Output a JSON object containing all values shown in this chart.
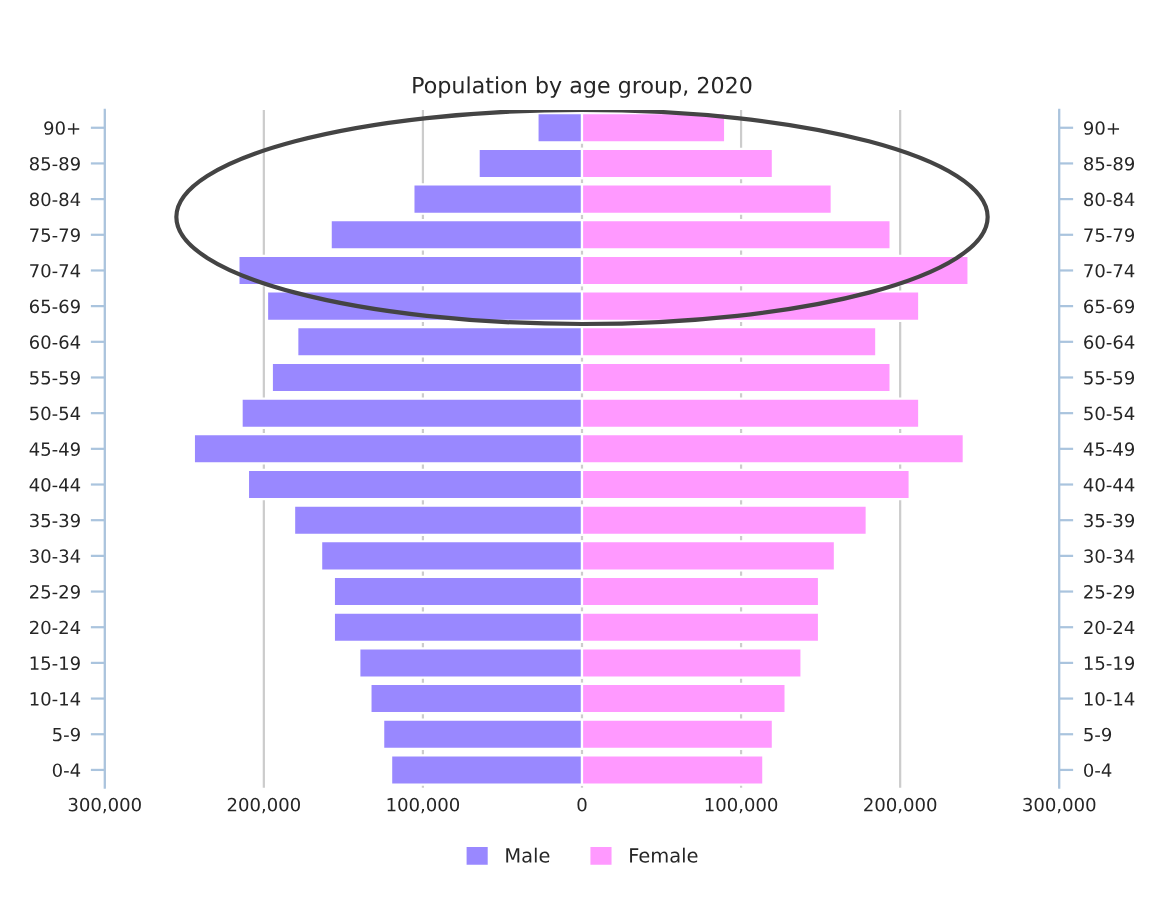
{
  "chart_data": {
    "type": "bar",
    "orientation": "horizontal",
    "title": "Population by age group, 2020",
    "categories": [
      "90+",
      "85-89",
      "80-84",
      "75-79",
      "70-74",
      "65-69",
      "60-64",
      "55-59",
      "50-54",
      "45-49",
      "40-44",
      "35-39",
      "30-34",
      "25-29",
      "20-24",
      "15-19",
      "10-14",
      "5-9",
      "0-4"
    ],
    "series": [
      {
        "name": "Male",
        "color": "#9988ff",
        "values": [
          -28000,
          -65000,
          -106000,
          -158000,
          -216000,
          -198000,
          -179000,
          -195000,
          -214000,
          -244000,
          -210000,
          -181000,
          -164000,
          -156000,
          -156000,
          -140000,
          -133000,
          -125000,
          -120000
        ]
      },
      {
        "name": "Female",
        "color": "#ff99ff",
        "values": [
          90000,
          120000,
          157000,
          194000,
          243000,
          212000,
          185000,
          194000,
          212000,
          240000,
          206000,
          179000,
          159000,
          149000,
          149000,
          138000,
          128000,
          120000,
          114000
        ]
      }
    ],
    "xlim": [
      -300000,
      300000
    ],
    "xticks": [
      {
        "value": -300000,
        "label": "300,000"
      },
      {
        "value": -200000,
        "label": "200,000"
      },
      {
        "value": -100000,
        "label": "100,000"
      },
      0,
      {
        "value": 100000,
        "label": "100,000"
      },
      {
        "value": 200000,
        "label": "200,000"
      },
      {
        "value": 300000,
        "label": "300,000"
      }
    ],
    "grid": "x",
    "legend": "bottom",
    "stacked": true
  }
}
